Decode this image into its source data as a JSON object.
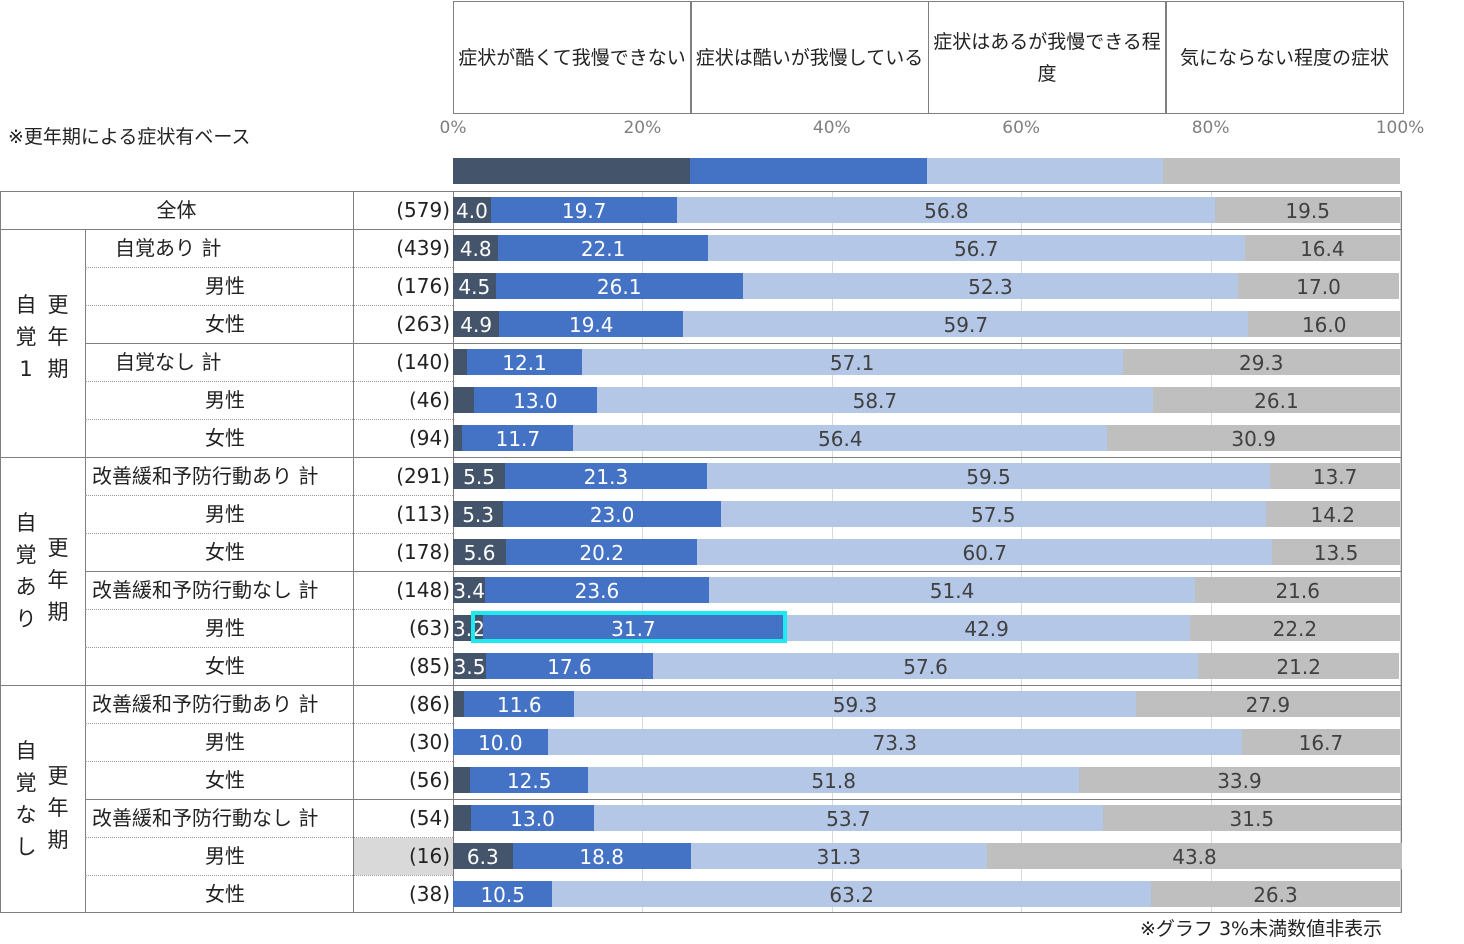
{
  "chart_data": {
    "type": "bar",
    "orientation": "horizontal",
    "stacked": "100%",
    "legend": [
      "症状が酷くて我慢できない",
      "症状は酷いが我慢している",
      "症状はあるが我慢できる程度",
      "気にならない程度の症状"
    ],
    "colors": [
      "#44546a",
      "#4472c4",
      "#b4c7e7",
      "#bfbfbf"
    ],
    "xticks": [
      "0%",
      "20%",
      "40%",
      "60%",
      "80%",
      "100%"
    ],
    "xlim": [
      0,
      100
    ],
    "base_note": "※更年期による症状有ベース",
    "footnote": "※グラフ 3%未満数値非表示",
    "groups": [
      {
        "label": "全体",
        "rows": [
          0
        ]
      },
      {
        "label_col1": "自覚1",
        "label_col2": "更年期",
        "rows": [
          1,
          2,
          3,
          4,
          5,
          6
        ]
      },
      {
        "label_col1": "自覚あり",
        "label_col2": "更年期",
        "rows": [
          7,
          8,
          9,
          10,
          11,
          12
        ]
      },
      {
        "label_col1": "自覚なし",
        "label_col2": "更年期",
        "rows": [
          13,
          14,
          15,
          16,
          17,
          18
        ]
      }
    ],
    "rows": [
      {
        "label": "全体",
        "n": "(579)",
        "values": [
          4.0,
          19.7,
          56.8,
          19.5
        ]
      },
      {
        "label": "自覚あり  計",
        "n": "(439)",
        "values": [
          4.8,
          22.1,
          56.7,
          16.4
        ]
      },
      {
        "label": "男性",
        "n": "(176)",
        "values": [
          4.5,
          26.1,
          52.3,
          17.0
        ]
      },
      {
        "label": "女性",
        "n": "(263)",
        "values": [
          4.9,
          19.4,
          59.7,
          16.0
        ]
      },
      {
        "label": "自覚なし  計",
        "n": "(140)",
        "values": [
          1.5,
          12.1,
          57.1,
          29.3
        ]
      },
      {
        "label": "男性",
        "n": "(46)",
        "values": [
          2.2,
          13.0,
          58.7,
          26.1
        ]
      },
      {
        "label": "女性",
        "n": "(94)",
        "values": [
          1.0,
          11.7,
          56.4,
          30.9
        ]
      },
      {
        "label": "改善緩和予防行動あり 計",
        "n": "(291)",
        "values": [
          5.5,
          21.3,
          59.5,
          13.7
        ]
      },
      {
        "label": "男性",
        "n": "(113)",
        "values": [
          5.3,
          23.0,
          57.5,
          14.2
        ]
      },
      {
        "label": "女性",
        "n": "(178)",
        "values": [
          5.6,
          20.2,
          60.7,
          13.5
        ]
      },
      {
        "label": "改善緩和予防行動なし 計",
        "n": "(148)",
        "values": [
          3.4,
          23.6,
          51.4,
          21.6
        ]
      },
      {
        "label": "男性",
        "n": "(63)",
        "values": [
          3.2,
          31.7,
          42.9,
          22.2
        ],
        "highlight": true
      },
      {
        "label": "女性",
        "n": "(85)",
        "values": [
          3.5,
          17.6,
          57.6,
          21.2
        ]
      },
      {
        "label": "改善緩和予防行動あり 計",
        "n": "(86)",
        "values": [
          1.2,
          11.6,
          59.3,
          27.9
        ]
      },
      {
        "label": "男性",
        "n": "(30)",
        "values": [
          0,
          10.0,
          73.3,
          16.7
        ]
      },
      {
        "label": "女性",
        "n": "(56)",
        "values": [
          1.8,
          12.5,
          51.8,
          33.9
        ]
      },
      {
        "label": "改善緩和予防行動なし 計",
        "n": "(54)",
        "values": [
          1.9,
          13.0,
          53.7,
          31.5
        ]
      },
      {
        "label": "男性",
        "n": "(16)",
        "values": [
          6.3,
          18.8,
          31.3,
          43.8
        ],
        "n_shaded": true
      },
      {
        "label": "女性",
        "n": "(38)",
        "values": [
          0,
          10.5,
          63.2,
          26.3
        ]
      }
    ]
  }
}
